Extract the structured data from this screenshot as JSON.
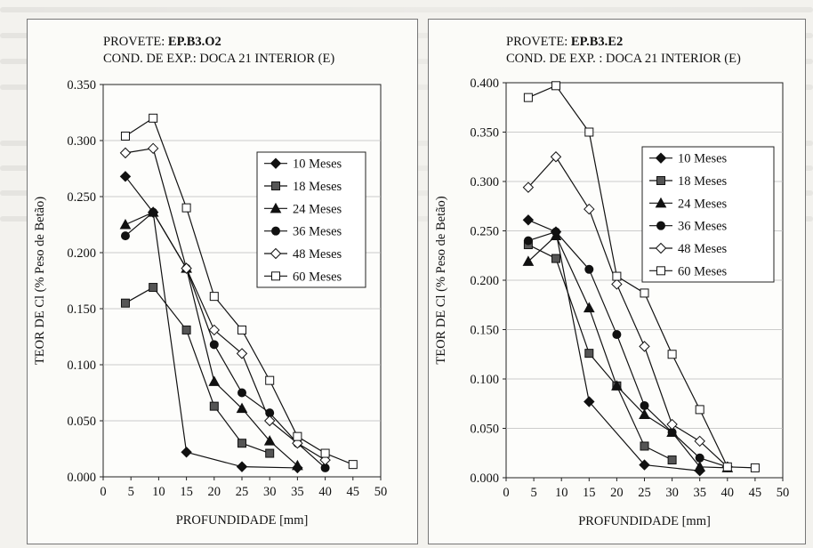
{
  "chart_data": [
    {
      "type": "line",
      "title_prefix": "PROVETE: ",
      "title_id": "EP.B3.O2",
      "subtitle": "COND. DE EXP.: DOCA 21 INTERIOR (E)",
      "xlabel": "PROFUNDIDADE [mm]",
      "ylabel": "TEOR DE Cl (% Peso de Betão)",
      "xlim": [
        0,
        50
      ],
      "ylim": [
        0,
        0.35
      ],
      "xticks": [
        0,
        5,
        10,
        15,
        20,
        25,
        30,
        35,
        40,
        45,
        50
      ],
      "yticks": [
        "0.000",
        "0.050",
        "0.100",
        "0.150",
        "0.200",
        "0.250",
        "0.300",
        "0.350"
      ],
      "grid": "horizontal",
      "legend": "right",
      "series": [
        {
          "name": "10 Meses",
          "marker": "diamond-filled",
          "x": [
            4,
            9,
            15,
            25,
            35
          ],
          "y": [
            0.268,
            0.236,
            0.022,
            0.009,
            0.008
          ]
        },
        {
          "name": "18 Meses",
          "marker": "square-filled",
          "x": [
            4,
            9,
            15,
            20,
            25,
            30
          ],
          "y": [
            0.155,
            0.169,
            0.131,
            0.063,
            0.03,
            0.021
          ]
        },
        {
          "name": "24 Meses",
          "marker": "triangle-filled",
          "x": [
            4,
            9,
            15,
            20,
            25,
            30,
            35
          ],
          "y": [
            0.225,
            0.236,
            0.186,
            0.085,
            0.061,
            0.032,
            0.01
          ]
        },
        {
          "name": "36 Meses",
          "marker": "circle-filled",
          "x": [
            4,
            9,
            15,
            20,
            25,
            30,
            35,
            40
          ],
          "y": [
            0.215,
            0.236,
            0.186,
            0.118,
            0.075,
            0.057,
            0.03,
            0.008
          ]
        },
        {
          "name": "48 Meses",
          "marker": "diamond-open",
          "x": [
            4,
            9,
            15,
            20,
            25,
            30,
            35,
            40
          ],
          "y": [
            0.289,
            0.293,
            0.186,
            0.131,
            0.11,
            0.05,
            0.03,
            0.015
          ]
        },
        {
          "name": "60 Meses",
          "marker": "square-open",
          "x": [
            4,
            9,
            15,
            20,
            25,
            30,
            35,
            40,
            45
          ],
          "y": [
            0.304,
            0.32,
            0.24,
            0.161,
            0.131,
            0.086,
            0.036,
            0.021,
            0.011
          ]
        }
      ]
    },
    {
      "type": "line",
      "title_prefix": "PROVETE: ",
      "title_id": "EP.B3.E2",
      "subtitle": "COND. DE EXP. : DOCA 21 INTERIOR (E)",
      "xlabel": "PROFUNDIDADE [mm]",
      "ylabel": "TEOR DE Cl (% Peso de Betão)",
      "xlim": [
        0,
        50
      ],
      "ylim": [
        0,
        0.4
      ],
      "xticks": [
        0,
        5,
        10,
        15,
        20,
        25,
        30,
        35,
        40,
        45,
        50
      ],
      "yticks": [
        "0.000",
        "0.050",
        "0.100",
        "0.150",
        "0.200",
        "0.250",
        "0.300",
        "0.350",
        "0.400"
      ],
      "grid": "horizontal",
      "legend": "right",
      "series": [
        {
          "name": "10 Meses",
          "marker": "diamond-filled",
          "x": [
            4,
            9,
            15,
            25,
            35
          ],
          "y": [
            0.261,
            0.249,
            0.077,
            0.013,
            0.007
          ]
        },
        {
          "name": "18 Meses",
          "marker": "square-filled",
          "x": [
            4,
            9,
            15,
            20,
            25,
            30
          ],
          "y": [
            0.236,
            0.222,
            0.126,
            0.093,
            0.032,
            0.018
          ]
        },
        {
          "name": "24 Meses",
          "marker": "triangle-filled",
          "x": [
            4,
            9,
            15,
            20,
            25,
            30,
            35,
            40
          ],
          "y": [
            0.219,
            0.245,
            0.172,
            0.093,
            0.064,
            0.046,
            0.011,
            0.01
          ]
        },
        {
          "name": "36 Meses",
          "marker": "circle-filled",
          "x": [
            4,
            9,
            15,
            20,
            25,
            30,
            35,
            40
          ],
          "y": [
            0.24,
            0.249,
            0.211,
            0.145,
            0.073,
            0.046,
            0.02,
            0.011
          ]
        },
        {
          "name": "48 Meses",
          "marker": "diamond-open",
          "x": [
            4,
            9,
            15,
            20,
            25,
            30,
            35,
            40
          ],
          "y": [
            0.294,
            0.325,
            0.272,
            0.196,
            0.133,
            0.054,
            0.037,
            0.011
          ]
        },
        {
          "name": "60 Meses",
          "marker": "square-open",
          "x": [
            4,
            9,
            15,
            20,
            25,
            30,
            35,
            40,
            45
          ],
          "y": [
            0.385,
            0.397,
            0.35,
            0.204,
            0.187,
            0.125,
            0.069,
            0.011,
            0.01
          ]
        }
      ]
    }
  ]
}
